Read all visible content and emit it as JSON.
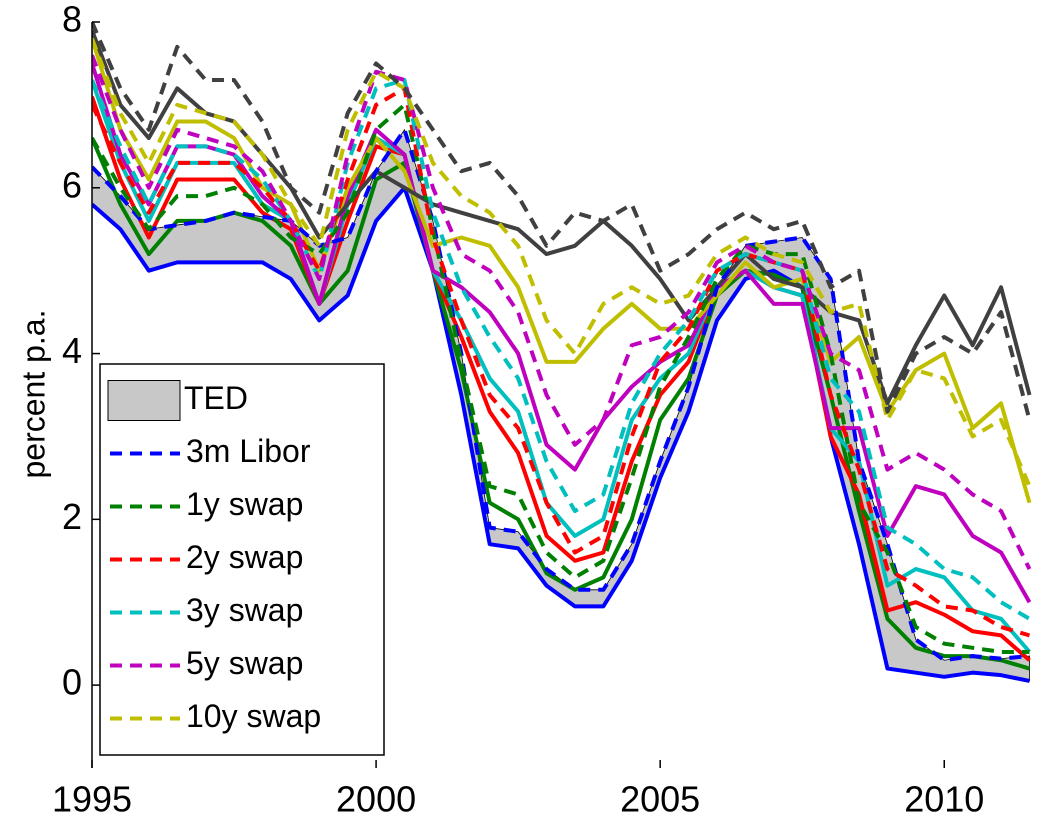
{
  "chart_data": {
    "type": "line",
    "y_label": "percent p.a.",
    "x": [
      1995,
      1995.5,
      1996,
      1996.5,
      1997,
      1997.5,
      1998,
      1998.5,
      1999,
      1999.5,
      2000,
      2000.5,
      2001,
      2001.5,
      2002,
      2002.5,
      2003,
      2003.5,
      2004,
      2004.5,
      2005,
      2005.5,
      2006,
      2006.5,
      2007,
      2007.5,
      2008,
      2008.5,
      2009,
      2009.5,
      2010,
      2010.5,
      2011,
      2011.5
    ],
    "xlim": [
      1995,
      2011.65
    ],
    "xticks": [
      1995,
      2000,
      2005,
      2010
    ],
    "ylim": [
      -1,
      8
    ],
    "yticks": [
      0,
      2,
      4,
      6,
      8
    ],
    "legend": "lower left",
    "area": {
      "name": "TED",
      "color": "#c8c8c8",
      "base": 0,
      "values": [
        0.45,
        0.4,
        0.5,
        0.45,
        0.5,
        0.6,
        0.55,
        0.7,
        0.9,
        0.7,
        0.6,
        0.7,
        0.6,
        0.5,
        0.2,
        0.2,
        0.2,
        0.2,
        0.2,
        0.2,
        0.2,
        0.3,
        0.4,
        0.4,
        0.35,
        0.6,
        1.9,
        1.0,
        1.5,
        0.4,
        0.2,
        0.2,
        0.2,
        0.3
      ]
    },
    "series": [
      {
        "color": "#0000ff",
        "linestyle": "solid",
        "values": [
          5.8,
          5.5,
          5.0,
          5.1,
          5.1,
          5.1,
          5.1,
          4.9,
          4.4,
          4.7,
          5.6,
          6.0,
          5.0,
          3.5,
          1.7,
          1.65,
          1.2,
          0.95,
          0.95,
          1.5,
          2.5,
          3.3,
          4.4,
          4.9,
          5.0,
          4.8,
          3.0,
          1.7,
          0.2,
          0.15,
          0.1,
          0.15,
          0.12,
          0.05
        ]
      },
      {
        "color": "#008000",
        "linestyle": "solid",
        "values": [
          6.6,
          5.8,
          5.2,
          5.6,
          5.6,
          5.7,
          5.6,
          5.3,
          4.6,
          5.0,
          6.1,
          6.3,
          5.0,
          3.8,
          2.2,
          2.0,
          1.35,
          1.15,
          1.3,
          2.0,
          3.2,
          3.7,
          4.7,
          5.0,
          4.95,
          4.8,
          3.5,
          2.1,
          0.8,
          0.45,
          0.35,
          0.35,
          0.3,
          0.2
        ]
      },
      {
        "color": "#ff0000",
        "linestyle": "solid",
        "values": [
          7.1,
          6.1,
          5.4,
          6.1,
          6.1,
          6.1,
          5.7,
          5.5,
          4.6,
          5.6,
          6.5,
          6.4,
          5.0,
          4.2,
          3.3,
          2.8,
          1.8,
          1.5,
          1.6,
          2.7,
          3.5,
          3.9,
          4.8,
          5.0,
          4.8,
          4.7,
          3.0,
          2.3,
          0.9,
          1.0,
          0.85,
          0.65,
          0.6,
          0.3
        ]
      },
      {
        "color": "#00bfbf",
        "linestyle": "solid",
        "values": [
          7.3,
          6.3,
          5.6,
          6.3,
          6.3,
          6.3,
          5.8,
          5.6,
          4.6,
          5.8,
          6.6,
          6.4,
          5.0,
          4.4,
          3.7,
          3.3,
          2.2,
          1.8,
          2.0,
          3.2,
          3.7,
          4.0,
          4.8,
          5.0,
          4.8,
          4.7,
          3.1,
          2.7,
          1.2,
          1.4,
          1.3,
          0.9,
          0.8,
          0.4
        ]
      },
      {
        "color": "#bf00bf",
        "linestyle": "solid",
        "values": [
          7.5,
          6.4,
          5.8,
          6.5,
          6.5,
          6.4,
          5.9,
          5.6,
          4.6,
          5.9,
          6.7,
          6.4,
          5.0,
          4.8,
          4.5,
          4.0,
          2.9,
          2.6,
          3.2,
          3.6,
          3.9,
          4.1,
          4.8,
          5.0,
          4.6,
          4.6,
          3.1,
          3.1,
          1.8,
          2.4,
          2.3,
          1.8,
          1.6,
          1.0
        ]
      },
      {
        "color": "#bfbf00",
        "linestyle": "solid",
        "values": [
          7.8,
          6.7,
          6.1,
          6.8,
          6.8,
          6.6,
          6.0,
          5.8,
          5.0,
          6.0,
          6.6,
          6.2,
          5.3,
          5.4,
          5.3,
          4.8,
          3.9,
          3.9,
          4.3,
          4.6,
          4.3,
          4.3,
          4.7,
          5.1,
          4.8,
          4.9,
          3.9,
          4.2,
          3.3,
          3.8,
          4.0,
          3.1,
          3.4,
          2.2
        ]
      },
      {
        "color": "#404040",
        "linestyle": "solid",
        "values": [
          7.9,
          7.0,
          6.6,
          7.2,
          6.9,
          6.8,
          6.4,
          6.0,
          5.4,
          5.8,
          6.2,
          6.0,
          5.8,
          5.7,
          5.6,
          5.5,
          5.2,
          5.3,
          5.6,
          5.3,
          4.9,
          4.4,
          4.8,
          5.2,
          4.9,
          4.8,
          4.5,
          4.4,
          3.4,
          4.1,
          4.7,
          4.1,
          4.8,
          3.5
        ]
      },
      {
        "name": "3m Libor",
        "color": "#0000ff",
        "linestyle": "dashed",
        "values": [
          6.25,
          5.9,
          5.5,
          5.55,
          5.6,
          5.7,
          5.65,
          5.6,
          5.3,
          5.4,
          6.2,
          6.7,
          5.6,
          4.0,
          1.9,
          1.85,
          1.4,
          1.15,
          1.15,
          1.7,
          2.7,
          3.6,
          4.8,
          5.3,
          5.35,
          5.4,
          4.9,
          2.7,
          1.7,
          0.55,
          0.3,
          0.35,
          0.32,
          0.35
        ]
      },
      {
        "name": "1y swap",
        "color": "#008000",
        "linestyle": "dashed",
        "values": [
          6.6,
          6.0,
          5.5,
          5.9,
          5.9,
          6.0,
          5.8,
          5.4,
          5.2,
          5.7,
          6.7,
          7.0,
          5.5,
          3.9,
          2.4,
          2.3,
          1.6,
          1.3,
          1.5,
          2.5,
          3.6,
          4.2,
          4.9,
          5.3,
          5.2,
          5.2,
          4.0,
          2.2,
          1.6,
          0.7,
          0.5,
          0.45,
          0.4,
          0.4
        ]
      },
      {
        "name": "2y swap",
        "color": "#ff0000",
        "linestyle": "dashed",
        "values": [
          7.0,
          6.3,
          5.7,
          6.3,
          6.3,
          6.3,
          6.0,
          5.6,
          5.0,
          6.1,
          7.0,
          7.2,
          5.4,
          4.4,
          3.5,
          3.1,
          2.2,
          1.6,
          1.8,
          3.0,
          3.9,
          4.3,
          5.0,
          5.2,
          5.1,
          5.0,
          3.5,
          2.6,
          1.4,
          1.2,
          0.95,
          0.9,
          0.7,
          0.6
        ]
      },
      {
        "name": "3y swap",
        "color": "#00bfbf",
        "linestyle": "dashed",
        "values": [
          7.3,
          6.5,
          5.8,
          6.5,
          6.5,
          6.4,
          6.1,
          5.6,
          4.9,
          6.3,
          7.2,
          7.3,
          5.7,
          4.8,
          4.2,
          3.7,
          2.7,
          2.1,
          2.3,
          3.4,
          4.0,
          4.4,
          5.0,
          5.2,
          5.1,
          5.0,
          3.7,
          3.3,
          1.9,
          1.7,
          1.4,
          1.3,
          1.0,
          0.8
        ]
      },
      {
        "name": "5y swap",
        "color": "#bf00bf",
        "linestyle": "dashed",
        "values": [
          7.6,
          6.7,
          6.0,
          6.7,
          6.6,
          6.5,
          6.2,
          5.6,
          4.9,
          6.4,
          7.4,
          7.3,
          6.0,
          5.2,
          5.0,
          4.5,
          3.5,
          2.9,
          3.2,
          4.1,
          4.2,
          4.5,
          5.1,
          5.3,
          5.1,
          5.0,
          4.0,
          3.8,
          2.6,
          2.8,
          2.6,
          2.3,
          2.1,
          1.4
        ]
      },
      {
        "name": "10y swap",
        "color": "#bfbf00",
        "linestyle": "dashed",
        "values": [
          7.8,
          6.9,
          6.3,
          7.0,
          6.9,
          6.8,
          6.4,
          5.8,
          5.3,
          6.7,
          7.4,
          7.2,
          6.3,
          5.9,
          5.7,
          5.3,
          4.4,
          4.0,
          4.6,
          4.8,
          4.6,
          4.7,
          5.2,
          5.4,
          5.2,
          5.1,
          4.5,
          4.6,
          3.2,
          3.8,
          3.7,
          3.0,
          3.2,
          2.4
        ]
      },
      {
        "color": "#404040",
        "linestyle": "dashed",
        "values": [
          8.0,
          7.2,
          6.7,
          7.7,
          7.3,
          7.3,
          6.8,
          6.0,
          5.7,
          6.9,
          7.5,
          7.2,
          6.7,
          6.2,
          6.3,
          5.9,
          5.3,
          5.7,
          5.6,
          5.8,
          5.0,
          5.2,
          5.5,
          5.7,
          5.5,
          5.6,
          4.8,
          5.0,
          3.3,
          4.0,
          4.2,
          4.0,
          4.5,
          3.2
        ]
      }
    ]
  }
}
